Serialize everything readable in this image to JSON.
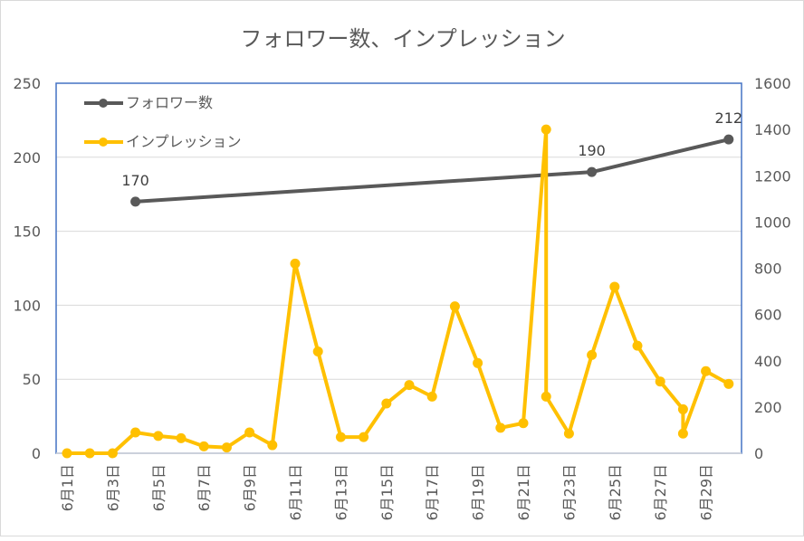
{
  "chart_data": {
    "type": "line",
    "title": "フォロワー数、インプレッション",
    "x_tick_labels": [
      "6月1日",
      "6月3日",
      "6月5日",
      "6月7日",
      "6月9日",
      "6月11日",
      "6月13日",
      "6月15日",
      "6月17日",
      "6月19日",
      "6月21日",
      "6月23日",
      "6月25日",
      "6月27日",
      "6月29日"
    ],
    "x_range_days": [
      1,
      30
    ],
    "y_left": {
      "min": 0,
      "max": 250,
      "ticks": [
        "0",
        "50",
        "100",
        "150",
        "200",
        "250"
      ]
    },
    "y_right": {
      "min": 0,
      "max": 1600,
      "ticks": [
        "0",
        "200",
        "400",
        "600",
        "800",
        "1000",
        "1200",
        "1400",
        "1600"
      ]
    },
    "grid": true,
    "legend_position": "top-left",
    "series": [
      {
        "name": "フォロワー数",
        "axis": "left",
        "color": "#595959",
        "points": [
          [
            4,
            170
          ],
          [
            24,
            190
          ],
          [
            30,
            212
          ]
        ],
        "data_labels": [
          "170",
          "190",
          "212"
        ]
      },
      {
        "name": "インプレッション",
        "axis": "right",
        "color": "#FFC000",
        "points": [
          [
            1,
            0
          ],
          [
            2,
            0
          ],
          [
            3,
            0
          ],
          [
            4,
            90
          ],
          [
            5,
            75
          ],
          [
            6,
            65
          ],
          [
            7,
            30
          ],
          [
            8,
            25
          ],
          [
            9,
            90
          ],
          [
            10,
            35
          ],
          [
            11,
            820
          ],
          [
            12,
            440
          ],
          [
            13,
            70
          ],
          [
            14,
            70
          ],
          [
            15,
            215
          ],
          [
            16,
            295
          ],
          [
            17,
            245
          ],
          [
            18,
            635
          ],
          [
            19,
            390
          ],
          [
            20,
            110
          ],
          [
            21,
            130
          ],
          [
            22,
            1400
          ],
          [
            22,
            245
          ],
          [
            23,
            85
          ],
          [
            24,
            425
          ],
          [
            25,
            720
          ],
          [
            26,
            465
          ],
          [
            27,
            310
          ],
          [
            28,
            190
          ],
          [
            28,
            85
          ],
          [
            29,
            355
          ],
          [
            30,
            300
          ]
        ]
      }
    ]
  }
}
